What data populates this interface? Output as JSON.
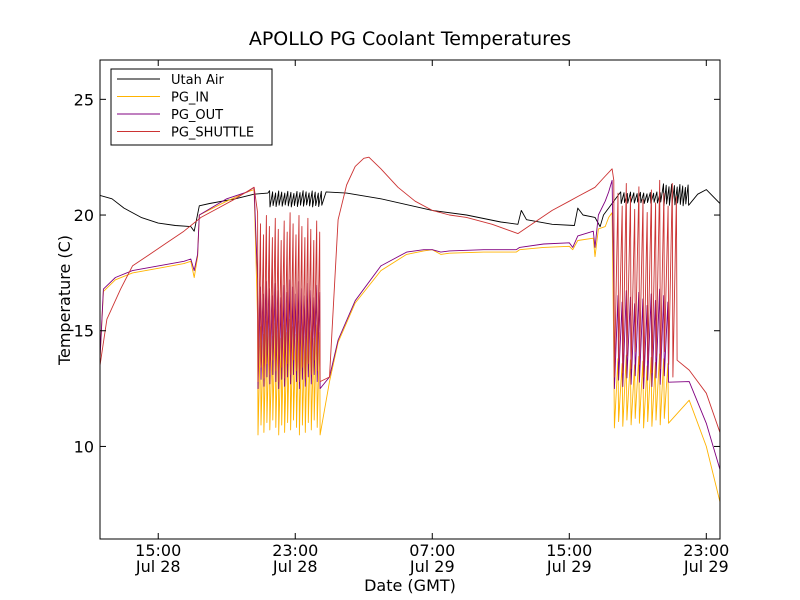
{
  "chart_data": {
    "type": "line",
    "title": "APOLLO PG Coolant Temperatures",
    "xlabel": "Date (GMT)",
    "ylabel": "Temperature (C)",
    "x_unit": "hours since Jul 28 00:00 GMT",
    "xlim": [
      11.6,
      47.8
    ],
    "ylim": [
      6.0,
      26.7
    ],
    "y_ticks": [
      10,
      15,
      20,
      25
    ],
    "x_ticks": [
      {
        "x": 15,
        "line1": "15:00",
        "line2": "Jul 28"
      },
      {
        "x": 23,
        "line1": "23:00",
        "line2": "Jul 28"
      },
      {
        "x": 31,
        "line1": "07:00",
        "line2": "Jul 29"
      },
      {
        "x": 39,
        "line1": "15:00",
        "line2": "Jul 29"
      },
      {
        "x": 47,
        "line1": "23:00",
        "line2": "Jul 29"
      }
    ],
    "legend_position": "upper-left",
    "series": [
      {
        "name": "Utah Air",
        "color": "#000000",
        "points": [
          [
            11.6,
            20.85
          ],
          [
            12.3,
            20.7
          ],
          [
            13.0,
            20.3
          ],
          [
            14.0,
            19.9
          ],
          [
            15.0,
            19.65
          ],
          [
            16.0,
            19.55
          ],
          [
            16.9,
            19.5
          ],
          [
            17.1,
            19.3
          ],
          [
            17.4,
            20.4
          ],
          [
            18.0,
            20.5
          ],
          [
            19.5,
            20.7
          ],
          [
            20.6,
            20.9
          ],
          [
            21.4,
            20.95
          ],
          [
            24.8,
            21.0
          ],
          [
            26.0,
            20.95
          ],
          [
            28.0,
            20.7
          ],
          [
            31.0,
            20.2
          ],
          [
            33.0,
            20.0
          ],
          [
            35.0,
            19.7
          ],
          [
            36.0,
            19.6
          ],
          [
            36.2,
            20.2
          ],
          [
            36.5,
            19.8
          ],
          [
            38.0,
            19.6
          ],
          [
            39.3,
            19.55
          ],
          [
            39.5,
            20.3
          ],
          [
            39.8,
            20.0
          ],
          [
            40.5,
            19.9
          ],
          [
            40.8,
            19.5
          ],
          [
            41.0,
            20.0
          ],
          [
            42.0,
            20.9
          ],
          [
            46.5,
            20.9
          ],
          [
            47.0,
            21.1
          ],
          [
            47.8,
            20.5
          ]
        ],
        "oscillations": [
          {
            "from": 21.5,
            "to": 24.7,
            "cycles": 18,
            "low": 20.35,
            "high": 21.05
          },
          {
            "from": 42.0,
            "to": 44.5,
            "cycles": 13,
            "low": 20.5,
            "high": 21.0
          },
          {
            "from": 44.5,
            "to": 46.1,
            "cycles": 10,
            "low": 20.4,
            "high": 21.35
          }
        ]
      },
      {
        "name": "PG_IN",
        "color": "#ffb300",
        "points": [
          [
            11.6,
            13.8
          ],
          [
            11.8,
            16.7
          ],
          [
            12.5,
            17.2
          ],
          [
            13.5,
            17.5
          ],
          [
            15.0,
            17.7
          ],
          [
            16.5,
            17.9
          ],
          [
            16.9,
            18.0
          ],
          [
            17.1,
            17.3
          ],
          [
            17.3,
            18.2
          ],
          [
            17.4,
            20.0
          ],
          [
            19.0,
            20.6
          ],
          [
            20.2,
            21.0
          ],
          [
            20.6,
            21.1
          ],
          [
            24.5,
            13.0
          ],
          [
            25.0,
            12.8
          ],
          [
            25.5,
            14.5
          ],
          [
            26.5,
            16.2
          ],
          [
            28.0,
            17.6
          ],
          [
            29.5,
            18.3
          ],
          [
            30.5,
            18.45
          ],
          [
            31.0,
            18.5
          ],
          [
            31.5,
            18.3
          ],
          [
            32.0,
            18.35
          ],
          [
            34.0,
            18.4
          ],
          [
            35.9,
            18.4
          ],
          [
            36.1,
            18.5
          ],
          [
            37.5,
            18.6
          ],
          [
            39.0,
            18.65
          ],
          [
            39.2,
            18.5
          ],
          [
            39.5,
            18.9
          ],
          [
            40.4,
            19.0
          ],
          [
            40.5,
            18.2
          ],
          [
            40.7,
            19.4
          ],
          [
            41.1,
            19.5
          ],
          [
            41.3,
            19.9
          ],
          [
            41.5,
            20.1
          ],
          [
            42.0,
            11.0
          ],
          [
            45.0,
            12.5
          ],
          [
            46.0,
            12.0
          ],
          [
            47.0,
            10.0
          ],
          [
            47.8,
            7.6
          ]
        ],
        "oscillations": [
          {
            "from": 20.8,
            "to": 24.6,
            "cycles": 22,
            "low": 10.5,
            "high": 15.5
          },
          {
            "from": 41.6,
            "to": 45.0,
            "cycles": 14,
            "low": 10.8,
            "high": 14.0
          }
        ]
      },
      {
        "name": "PG_OUT",
        "color": "#800080",
        "points": [
          [
            11.6,
            13.8
          ],
          [
            11.8,
            16.8
          ],
          [
            12.5,
            17.3
          ],
          [
            13.5,
            17.6
          ],
          [
            15.0,
            17.8
          ],
          [
            16.5,
            18.0
          ],
          [
            16.9,
            18.1
          ],
          [
            17.1,
            17.6
          ],
          [
            17.3,
            18.3
          ],
          [
            17.4,
            20.0
          ],
          [
            19.0,
            20.7
          ],
          [
            20.2,
            21.0
          ],
          [
            20.6,
            21.2
          ],
          [
            24.5,
            13.5
          ],
          [
            25.0,
            13.0
          ],
          [
            25.5,
            14.6
          ],
          [
            26.5,
            16.3
          ],
          [
            28.0,
            17.8
          ],
          [
            29.5,
            18.4
          ],
          [
            30.5,
            18.5
          ],
          [
            31.0,
            18.5
          ],
          [
            31.5,
            18.4
          ],
          [
            32.0,
            18.45
          ],
          [
            34.0,
            18.5
          ],
          [
            35.9,
            18.5
          ],
          [
            36.1,
            18.6
          ],
          [
            37.5,
            18.75
          ],
          [
            39.0,
            18.8
          ],
          [
            39.2,
            18.6
          ],
          [
            39.5,
            19.1
          ],
          [
            40.4,
            19.3
          ],
          [
            40.5,
            18.6
          ],
          [
            40.7,
            20.0
          ],
          [
            41.1,
            20.6
          ],
          [
            41.3,
            21.0
          ],
          [
            41.5,
            21.5
          ],
          [
            42.0,
            13.0
          ],
          [
            45.0,
            14.0
          ],
          [
            46.0,
            12.8
          ],
          [
            47.0,
            11.0
          ],
          [
            47.8,
            9.0
          ]
        ],
        "oscillations": [
          {
            "from": 20.8,
            "to": 24.6,
            "cycles": 22,
            "low": 12.5,
            "high": 17.2
          },
          {
            "from": 41.6,
            "to": 45.0,
            "cycles": 14,
            "low": 12.5,
            "high": 16.8
          }
        ]
      },
      {
        "name": "PG_SHUTTLE",
        "color": "#cc3333",
        "points": [
          [
            11.6,
            13.5
          ],
          [
            12.0,
            15.5
          ],
          [
            12.8,
            16.8
          ],
          [
            13.5,
            17.8
          ],
          [
            14.5,
            18.3
          ],
          [
            15.5,
            18.8
          ],
          [
            16.5,
            19.3
          ],
          [
            17.5,
            19.9
          ],
          [
            18.5,
            20.3
          ],
          [
            19.5,
            20.7
          ],
          [
            20.6,
            21.2
          ],
          [
            24.5,
            13.0
          ],
          [
            25.0,
            13.0
          ],
          [
            25.5,
            19.8
          ],
          [
            26.0,
            21.3
          ],
          [
            26.5,
            22.1
          ],
          [
            27.0,
            22.45
          ],
          [
            27.3,
            22.5
          ],
          [
            28.0,
            22.0
          ],
          [
            29.0,
            21.2
          ],
          [
            30.0,
            20.6
          ],
          [
            31.0,
            20.2
          ],
          [
            32.0,
            20.0
          ],
          [
            33.0,
            19.9
          ],
          [
            34.5,
            19.6
          ],
          [
            36.0,
            19.2
          ],
          [
            37.0,
            19.7
          ],
          [
            38.0,
            20.2
          ],
          [
            39.0,
            20.6
          ],
          [
            39.5,
            20.8
          ],
          [
            40.5,
            21.2
          ],
          [
            41.0,
            21.6
          ],
          [
            41.5,
            22.0
          ],
          [
            42.0,
            14.0
          ],
          [
            45.0,
            15.0
          ],
          [
            45.5,
            15.2
          ],
          [
            46.0,
            13.3
          ],
          [
            47.0,
            12.3
          ],
          [
            47.8,
            10.6
          ]
        ],
        "oscillations": [
          {
            "from": 20.8,
            "to": 24.6,
            "cycles": 22,
            "low": 12.8,
            "high": 20.1
          },
          {
            "from": 41.6,
            "to": 45.5,
            "cycles": 16,
            "low": 13.0,
            "high": 21.5
          }
        ]
      }
    ]
  }
}
